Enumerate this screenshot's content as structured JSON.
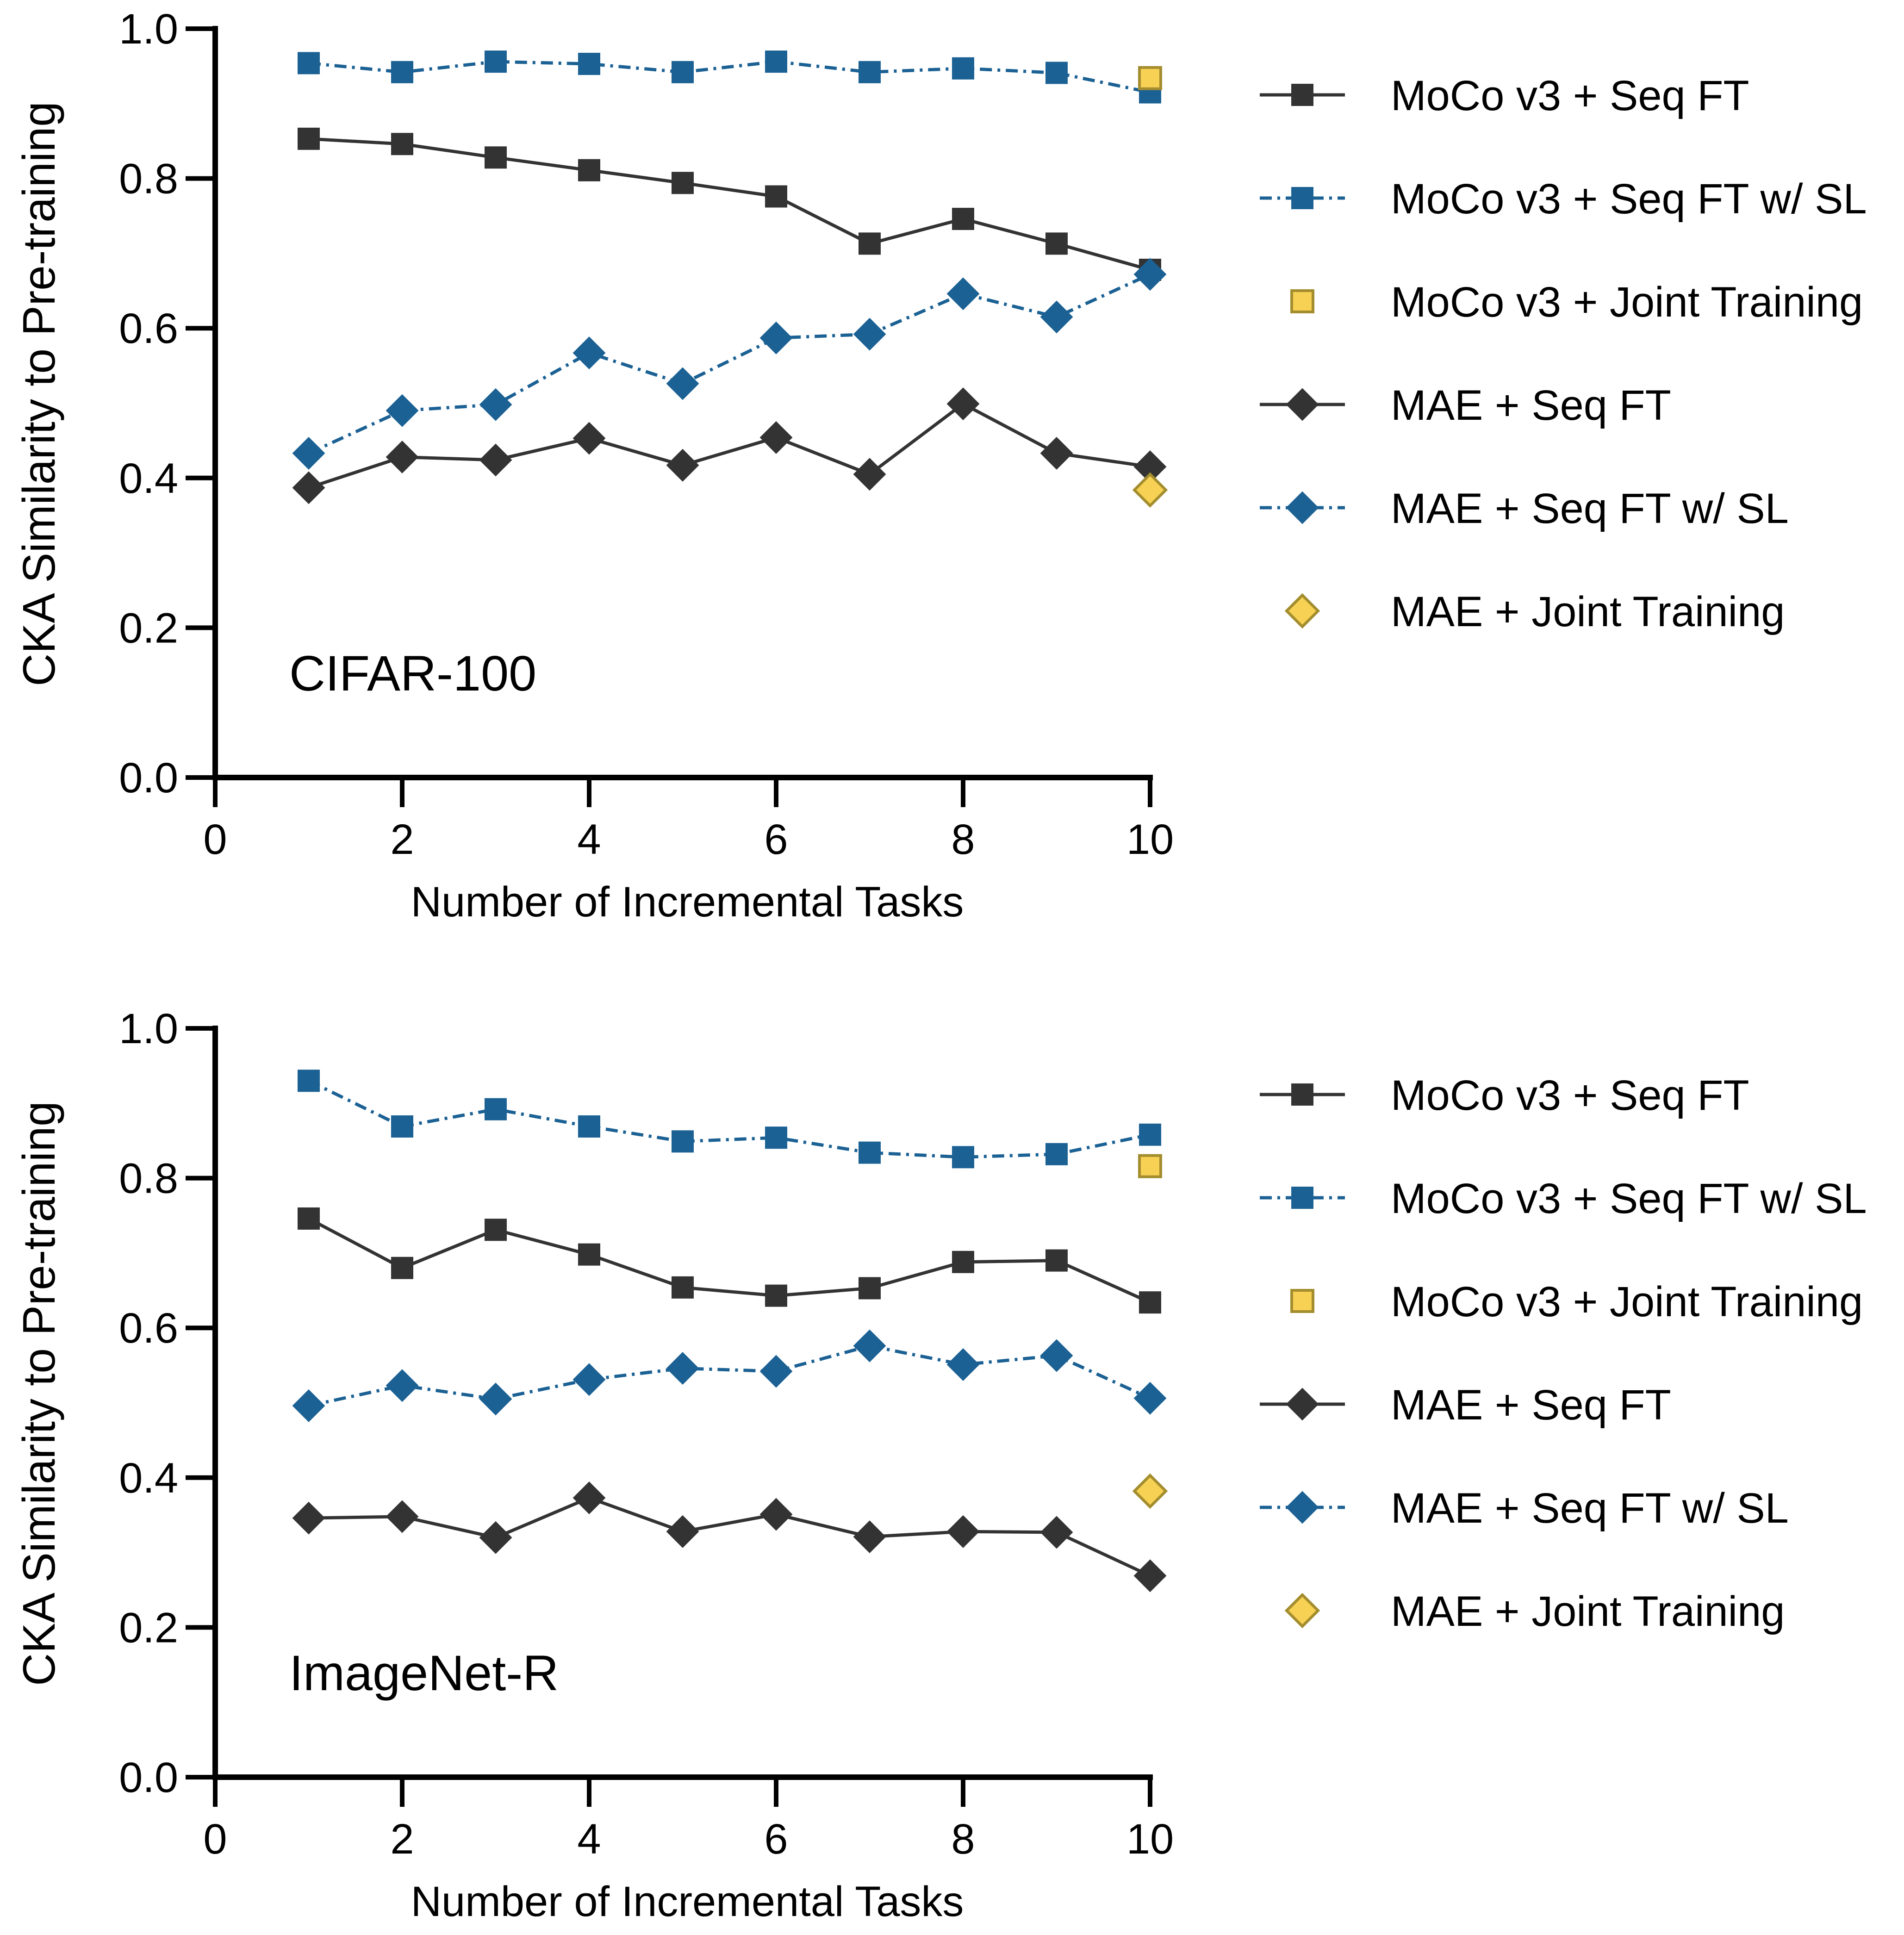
{
  "colors": {
    "seq_ft": "#333333",
    "seq_ft_sl": "#1b6194",
    "joint_fill": "#f7d154",
    "joint_edge": "#a38d2e",
    "axis": "#000000"
  },
  "legend": [
    {
      "key": "moco_seq",
      "label": "MoCo v3 + Seq FT",
      "marker": "square",
      "line": "solid",
      "color": "#333333"
    },
    {
      "key": "moco_seq_sl",
      "label": "MoCo v3 + Seq FT w/ SL",
      "marker": "square",
      "line": "dashdot",
      "color": "#1b6194"
    },
    {
      "key": "moco_joint",
      "label": "MoCo v3 + Joint Training",
      "marker": "square-open",
      "line": "none",
      "color": "#f7d154"
    },
    {
      "key": "mae_seq",
      "label": "MAE + Seq FT",
      "marker": "diamond",
      "line": "solid",
      "color": "#333333"
    },
    {
      "key": "mae_seq_sl",
      "label": "MAE + Seq FT w/ SL",
      "marker": "diamond",
      "line": "dashdot",
      "color": "#1b6194"
    },
    {
      "key": "mae_joint",
      "label": "MAE + Joint Training",
      "marker": "diamond-open",
      "line": "none",
      "color": "#f7d154"
    }
  ],
  "chart_data": [
    {
      "type": "line",
      "annotation": "CIFAR-100",
      "xlabel": "Number of Incremental Tasks",
      "ylabel": "CKA Similarity to Pre-training",
      "xlim": [
        0,
        10
      ],
      "ylim": [
        0,
        1.0
      ],
      "xticks": [
        "0",
        "2",
        "4",
        "6",
        "8",
        "10"
      ],
      "yticks": [
        "0.0",
        "0.2",
        "0.4",
        "0.6",
        "0.8",
        "1.0"
      ],
      "x": [
        1,
        2,
        3,
        4,
        5,
        6,
        7,
        8,
        9,
        10
      ],
      "series": [
        {
          "key": "moco_seq",
          "name": "MoCo v3 + Seq FT",
          "values": [
            0.853,
            0.846,
            0.828,
            0.811,
            0.794,
            0.776,
            0.713,
            0.746,
            0.713,
            0.678
          ]
        },
        {
          "key": "moco_seq_sl",
          "name": "MoCo v3 + Seq FT w/ SL",
          "values": [
            0.954,
            0.942,
            0.956,
            0.953,
            0.942,
            0.956,
            0.942,
            0.947,
            0.941,
            0.915
          ]
        },
        {
          "key": "moco_joint",
          "name": "MoCo v3 + Joint Training",
          "x": [
            10
          ],
          "values": [
            0.934
          ]
        },
        {
          "key": "mae_seq",
          "name": "MAE + Seq FT",
          "values": [
            0.387,
            0.428,
            0.424,
            0.453,
            0.417,
            0.454,
            0.405,
            0.499,
            0.433,
            0.415
          ]
        },
        {
          "key": "mae_seq_sl",
          "name": "MAE + Seq FT w/ SL",
          "values": [
            0.433,
            0.49,
            0.498,
            0.567,
            0.526,
            0.587,
            0.592,
            0.646,
            0.615,
            0.672
          ]
        },
        {
          "key": "mae_joint",
          "name": "MAE + Joint Training",
          "x": [
            10
          ],
          "values": [
            0.384
          ]
        }
      ]
    },
    {
      "type": "line",
      "annotation": "ImageNet-R",
      "xlabel": "Number of Incremental Tasks",
      "ylabel": "CKA Similarity to Pre-training",
      "xlim": [
        0,
        10
      ],
      "ylim": [
        0,
        1.0
      ],
      "xticks": [
        "0",
        "2",
        "4",
        "6",
        "8",
        "10"
      ],
      "yticks": [
        "0.0",
        "0.2",
        "0.4",
        "0.6",
        "0.8",
        "1.0"
      ],
      "x": [
        1,
        2,
        3,
        4,
        5,
        6,
        7,
        8,
        9,
        10
      ],
      "series": [
        {
          "key": "moco_seq",
          "name": "MoCo v3 + Seq FT",
          "values": [
            0.746,
            0.68,
            0.731,
            0.698,
            0.654,
            0.643,
            0.653,
            0.688,
            0.69,
            0.634
          ]
        },
        {
          "key": "moco_seq_sl",
          "name": "MoCo v3 + Seq FT w/ SL",
          "values": [
            0.93,
            0.869,
            0.892,
            0.869,
            0.849,
            0.854,
            0.834,
            0.828,
            0.832,
            0.858
          ]
        },
        {
          "key": "moco_joint",
          "name": "MoCo v3 + Joint Training",
          "x": [
            10
          ],
          "values": [
            0.816
          ]
        },
        {
          "key": "mae_seq",
          "name": "MAE + Seq FT",
          "values": [
            0.346,
            0.348,
            0.32,
            0.373,
            0.328,
            0.351,
            0.321,
            0.328,
            0.327,
            0.269
          ]
        },
        {
          "key": "mae_seq_sl",
          "name": "MAE + Seq FT w/ SL",
          "values": [
            0.496,
            0.523,
            0.505,
            0.531,
            0.546,
            0.542,
            0.576,
            0.551,
            0.563,
            0.506
          ]
        },
        {
          "key": "mae_joint",
          "name": "MAE + Joint Training",
          "x": [
            10
          ],
          "values": [
            0.382
          ]
        }
      ]
    }
  ]
}
